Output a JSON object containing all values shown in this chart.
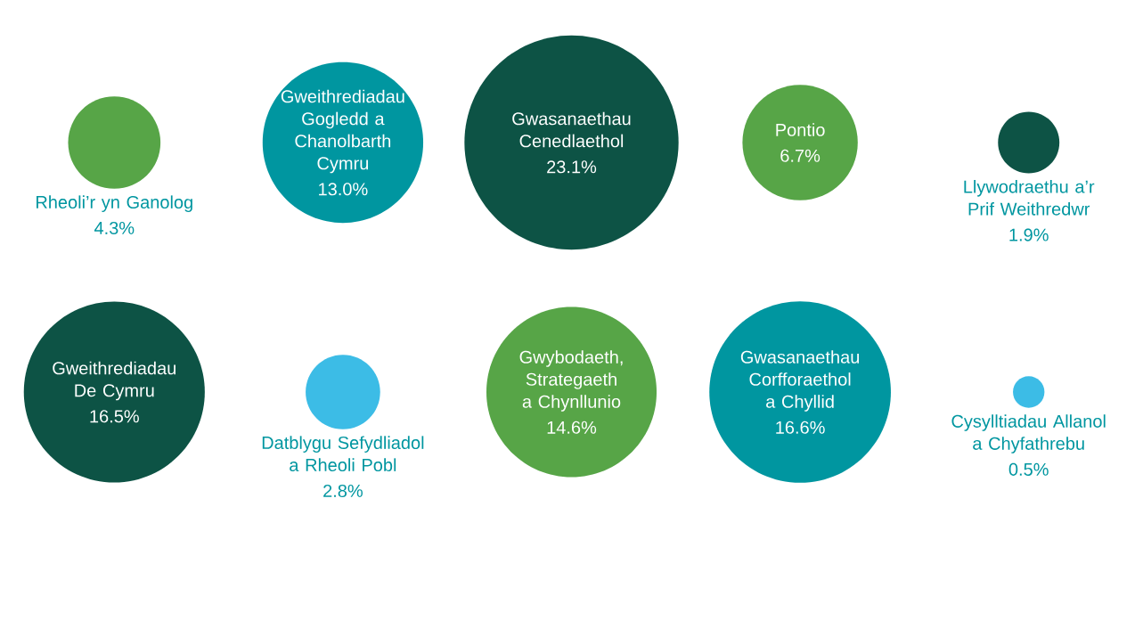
{
  "chart_data": {
    "type": "other",
    "categories": [
      "Rheoli’r yn Ganolog",
      "Gweithrediadau Gogledd a Chanolbarth Cymru",
      "Gwasanaethau Cenedlaethol",
      "Pontio",
      "Llywodraethu a’r Prif Weithredwr",
      "Gweithrediadau De Cymru",
      "Datblygu Sefydliadol a Rheoli Pobl",
      "Gwybodaeth, Strategaeth a Chynllunio",
      "Gwasanaethau Corfforaethol a Chyllid",
      "Cysylltiadau Allanol a Chyfathrebu"
    ],
    "values": [
      4.3,
      13.0,
      23.1,
      6.7,
      1.9,
      16.5,
      2.8,
      14.6,
      16.6,
      0.5
    ],
    "value_labels": [
      "4.3%",
      "13.0%",
      "23.1%",
      "6.7%",
      "1.9%",
      "16.5%",
      "2.8%",
      "14.6%",
      "16.6%",
      "0.5%"
    ],
    "colors": [
      "#57a547",
      "#0096a0",
      "#0d5345",
      "#57a547",
      "#0d5345",
      "#0d5345",
      "#3cbce6",
      "#57a547",
      "#0096a0",
      "#3cbce6"
    ]
  }
}
